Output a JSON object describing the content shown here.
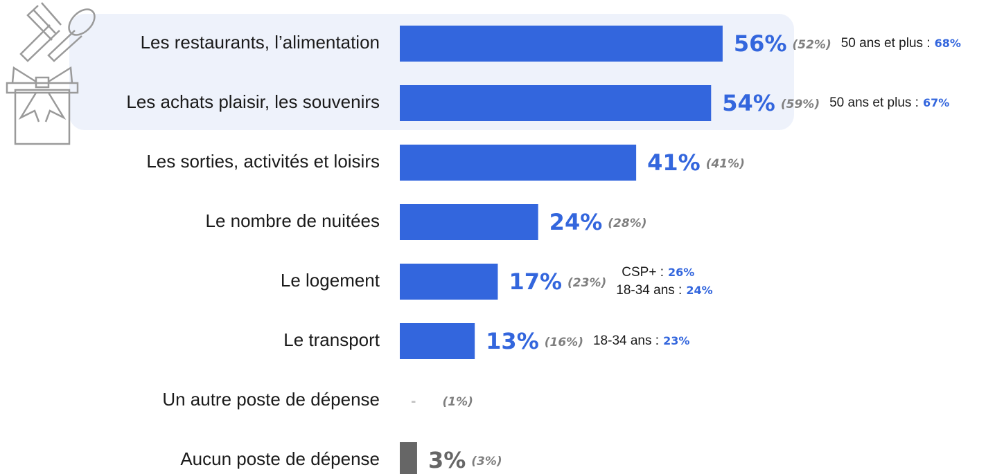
{
  "chart_data": {
    "type": "bar",
    "orientation": "horizontal",
    "categories": [
      "Les restaurants, l’alimentation",
      "Les achats plaisir, les souvenirs",
      "Les sorties, activités et loisirs",
      "Le nombre de nuitées",
      "Le logement",
      "Le transport",
      "Un autre poste de dépense",
      "Aucun poste de dépense"
    ],
    "values": [
      56,
      54,
      41,
      24,
      17,
      13,
      null,
      3
    ],
    "value_labels": [
      "56%",
      "54%",
      "41%",
      "24%",
      "17%",
      "13%",
      "-",
      "3%"
    ],
    "colors": [
      "#3366dd",
      "#3366dd",
      "#3366dd",
      "#3366dd",
      "#3366dd",
      "#3366dd",
      "#bfbfbf",
      "#666666"
    ],
    "label_colors": [
      "#3366dd",
      "#3366dd",
      "#3366dd",
      "#3366dd",
      "#3366dd",
      "#3366dd",
      "#bfbfbf",
      "#666666"
    ],
    "previous_values": [
      52,
      59,
      41,
      28,
      23,
      16,
      1,
      3
    ],
    "previous_labels": [
      "(52%)",
      "(59%)",
      "(41%)",
      "(28%)",
      "(23%)",
      "(16%)",
      "(1%)",
      "(3%)"
    ],
    "annotations": [
      [
        {
          "text": "50 ans et plus :",
          "value": 68,
          "value_label": "68%"
        }
      ],
      [
        {
          "text": "50 ans et plus :",
          "value": 67,
          "value_label": "67%"
        }
      ],
      [],
      [],
      [
        {
          "text": "CSP+ :",
          "value": 26,
          "value_label": "26%"
        },
        {
          "text": "18-34 ans :",
          "value": 24,
          "value_label": "24%"
        }
      ],
      [
        {
          "text": "18-34 ans :",
          "value": 23,
          "value_label": "23%"
        }
      ],
      [],
      []
    ],
    "xlim": [
      0,
      100
    ]
  }
}
